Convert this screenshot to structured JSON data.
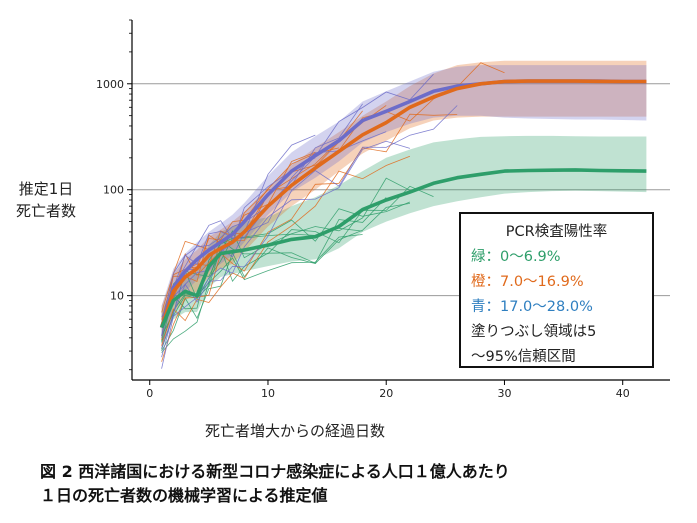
{
  "colors": {
    "green": "#2e9e6a",
    "orange": "#e06a1c",
    "blue": "#6c6cc9",
    "axis": "#000000",
    "grid": "#9a9a9a"
  },
  "figure": {
    "ylabel_line1": "推定1日",
    "ylabel_line2": "死亡者数",
    "xlabel": "死亡者増大からの経過日数",
    "caption_line1": "図 2 西洋諸国における新型コロナ感染症による人口１億人あたり",
    "caption_line2": "１日の死亡者数の機械学習による推定値"
  },
  "legend": {
    "title": "PCR検査陽性率",
    "items": [
      {
        "label": "緑：0〜6.9%",
        "color": "#2e9e6a"
      },
      {
        "label": "橙：7.0〜16.9%",
        "color": "#e06a1c"
      },
      {
        "label": "青：17.0〜28.0%",
        "color": "#2f7fc0"
      }
    ],
    "note_line1": "塗りつぶし領域は5",
    "note_line2": "〜95%信頼区間"
  },
  "chart_data": {
    "type": "line",
    "xlabel": "死亡者増大からの経過日数",
    "ylabel": "推定1日死亡者数",
    "x_ticks": [
      0,
      10,
      20,
      30,
      40
    ],
    "y_ticks": [
      10,
      100,
      1000
    ],
    "y_tick_labels": [
      "10",
      "100",
      "1000"
    ],
    "xlim": [
      -1.5,
      44
    ],
    "ylim": [
      1.6,
      4000
    ],
    "y_scale": "log",
    "grid": "horizontal",
    "legend_position": "lower-right",
    "series": [
      {
        "name": "緑：0〜6.9%",
        "color": "#2e9e6a",
        "x": [
          1,
          2,
          3,
          4,
          5,
          6,
          7,
          8,
          10,
          12,
          14,
          16,
          18,
          20,
          22,
          24,
          26,
          28,
          30,
          32,
          34,
          36,
          38,
          40,
          42
        ],
        "y": [
          5,
          9,
          11,
          10,
          19,
          25,
          26,
          27,
          30,
          34,
          36,
          45,
          65,
          80,
          95,
          115,
          130,
          140,
          150,
          152,
          153,
          154,
          152,
          151,
          150
        ],
        "lower": [
          4,
          6,
          7,
          7,
          12,
          15,
          16,
          17,
          19,
          21,
          22,
          28,
          40,
          50,
          60,
          70,
          78,
          85,
          92,
          95,
          97,
          98,
          97,
          96,
          95
        ],
        "upper": [
          7,
          13,
          16,
          17,
          30,
          40,
          45,
          50,
          55,
          70,
          85,
          110,
          150,
          200,
          240,
          280,
          300,
          315,
          320,
          322,
          322,
          320,
          318,
          318,
          318
        ]
      },
      {
        "name": "橙：7.0〜16.9%",
        "color": "#e06a1c",
        "x": [
          1,
          2,
          3,
          4,
          5,
          6,
          7,
          8,
          10,
          12,
          14,
          16,
          18,
          20,
          22,
          24,
          26,
          28,
          30,
          32,
          34,
          36,
          38,
          40,
          42
        ],
        "y": [
          5,
          11,
          15,
          18,
          24,
          28,
          32,
          40,
          70,
          110,
          160,
          230,
          330,
          430,
          600,
          750,
          900,
          1000,
          1050,
          1060,
          1060,
          1060,
          1055,
          1050,
          1050
        ],
        "lower": [
          3,
          7,
          9,
          11,
          15,
          18,
          20,
          26,
          45,
          70,
          100,
          150,
          220,
          290,
          380,
          450,
          480,
          490,
          490,
          490,
          490,
          490,
          490,
          490,
          490
        ],
        "upper": [
          8,
          16,
          22,
          27,
          36,
          42,
          50,
          62,
          105,
          170,
          250,
          350,
          500,
          680,
          950,
          1250,
          1500,
          1600,
          1650,
          1650,
          1650,
          1650,
          1650,
          1650,
          1650
        ]
      },
      {
        "name": "青：17.0〜28.0%",
        "color": "#6c6cc9",
        "x": [
          1,
          2,
          3,
          4,
          5,
          6,
          7,
          8,
          10,
          12,
          14,
          16,
          18,
          20,
          22,
          24,
          26,
          28,
          30,
          32,
          34,
          36,
          38,
          40,
          42
        ],
        "y": [
          5,
          12,
          17,
          22,
          27,
          32,
          38,
          50,
          90,
          150,
          210,
          290,
          450,
          550,
          680,
          850,
          950,
          1000,
          1050,
          1060,
          1060,
          1060,
          1060,
          1050,
          1050
        ],
        "lower": [
          3,
          8,
          11,
          14,
          17,
          20,
          24,
          32,
          58,
          95,
          130,
          185,
          280,
          350,
          420,
          480,
          500,
          500,
          480,
          470,
          465,
          460,
          460,
          455,
          450
        ],
        "upper": [
          8,
          18,
          25,
          32,
          40,
          48,
          58,
          75,
          135,
          225,
          320,
          440,
          680,
          850,
          1050,
          1300,
          1450,
          1500,
          1500,
          1500,
          1500,
          1500,
          1500,
          1500,
          1500
        ]
      }
    ]
  }
}
